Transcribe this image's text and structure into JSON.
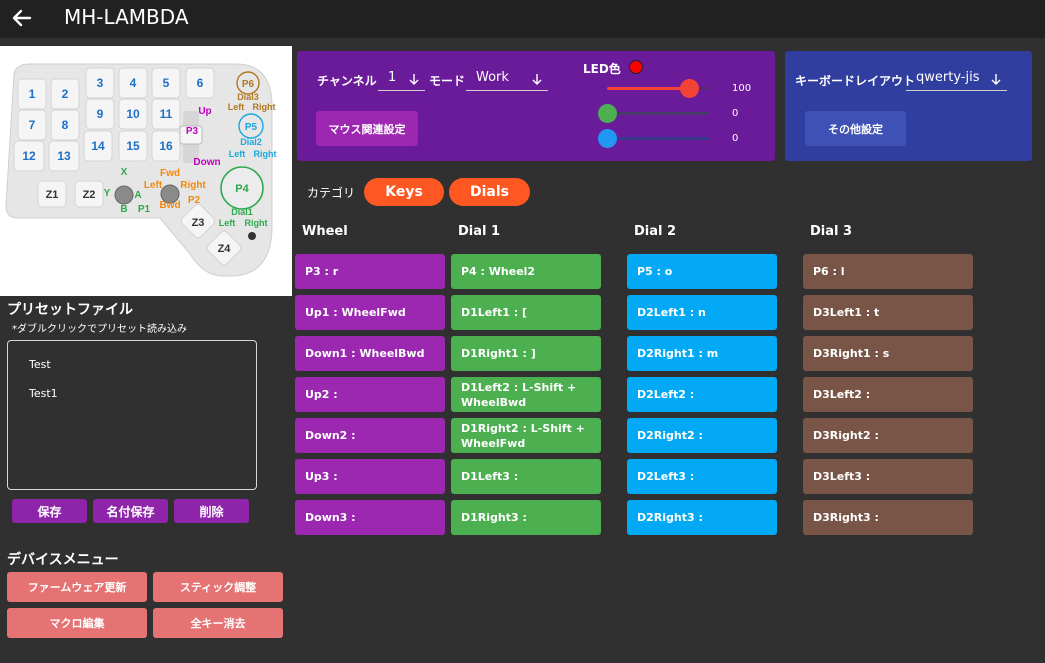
{
  "app": {
    "title": "MH-LAMBDA"
  },
  "device_image": {
    "keys": [
      "1",
      "2",
      "3",
      "4",
      "5",
      "6",
      "7",
      "8",
      "9",
      "10",
      "11",
      "12",
      "13",
      "14",
      "15",
      "16",
      "Z1",
      "Z2",
      "Z3",
      "Z4"
    ],
    "labels": {
      "p6": "P6",
      "dial3": "Dial3",
      "dial3_left": "Left",
      "dial3_right": "Right",
      "p5": "P5",
      "dial2": "Dial2",
      "dial2_left": "Left",
      "dial2_right": "Right",
      "p4": "P4",
      "dial1": "Dial1",
      "dial1_left": "Left",
      "dial1_right": "Right",
      "up": "Up",
      "p3": "P3",
      "down": "Down",
      "fwd": "Fwd",
      "bwd": "Bwd",
      "stick_left": "Left",
      "stick_right": "Right",
      "p2": "P2",
      "x": "X",
      "y": "Y",
      "a": "A",
      "b": "B",
      "p1": "P1"
    }
  },
  "preset": {
    "title": "プリセットファイル",
    "note": "*ダブルクリックでプリセット読み込み",
    "items": [
      "Test",
      "Test1"
    ],
    "buttons": {
      "save": "保存",
      "save_as": "名付保存",
      "delete": "削除"
    }
  },
  "device_menu": {
    "title": "デバイスメニュー",
    "buttons": {
      "firmware": "ファームウェア更新",
      "stick": "スティック調整",
      "macro": "マクロ編集",
      "clear_all": "全キー消去"
    }
  },
  "settings": {
    "channel_label": "チャンネル",
    "channel_value": "1",
    "mode_label": "モード",
    "mode_value": "Work",
    "mouse_button": "マウス関連設定",
    "led_label": "LED色",
    "led_color": "#ff0000",
    "red_value": "100",
    "green_value": "0",
    "blue_value": "0",
    "red_level": 0.8,
    "green_level": 0,
    "blue_level": 0,
    "keyboard_label": "キーボードレイアウト",
    "keyboard_value": "qwerty-jis",
    "other_button": "その他設定"
  },
  "category": {
    "label": "カテゴリ",
    "tabs": [
      "Keys",
      "Dials"
    ]
  },
  "columns": [
    {
      "header": "Wheel",
      "cells": [
        "P3 : r",
        "Up1 : WheelFwd",
        "Down1 : WheelBwd",
        "Up2 :",
        "Down2 :",
        "Up3 :",
        "Down3 :"
      ]
    },
    {
      "header": "Dial 1",
      "cells": [
        "P4 : Wheel2",
        "D1Left1 : [",
        "D1Right1 : ]",
        "D1Left2 : L-Shift + WheelBwd",
        "D1Right2 : L-Shift + WheelFwd",
        "D1Left3 :",
        "D1Right3 :"
      ]
    },
    {
      "header": "Dial 2",
      "cells": [
        "P5 : o",
        "D2Left1 : n",
        "D2Right1 : m",
        "D2Left2 :",
        "D2Right2 :",
        "D2Left3 :",
        "D2Right3 :"
      ]
    },
    {
      "header": "Dial 3",
      "cells": [
        "P6 : l",
        "D3Left1 : t",
        "D3Right1 : s",
        "D3Left2 :",
        "D3Right2 :",
        "D3Left3 :",
        "D3Right3 :"
      ]
    }
  ]
}
